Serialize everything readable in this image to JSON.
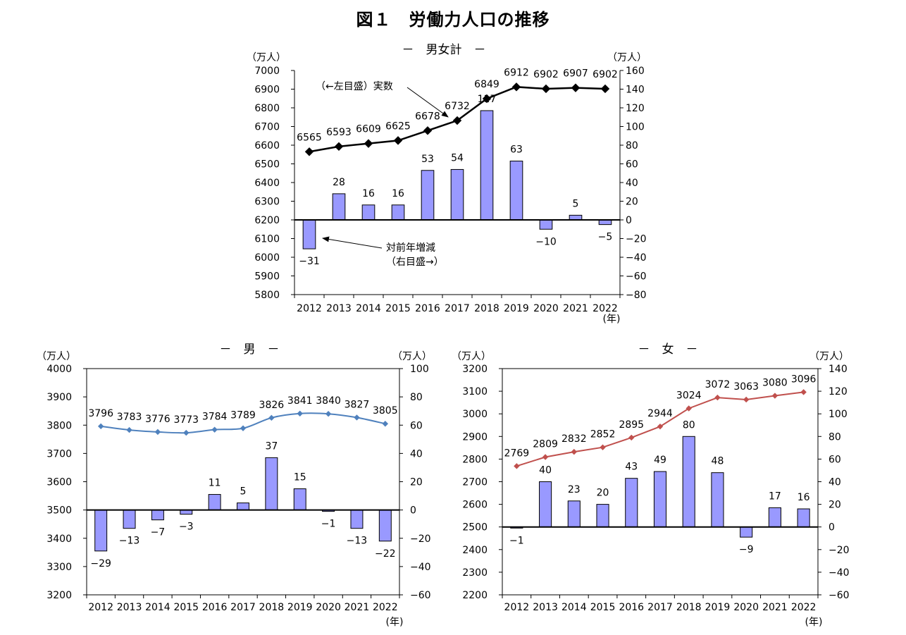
{
  "figure_title": "図１　労働力人口の推移",
  "chart_data": [
    {
      "id": "total",
      "type": "bar+line",
      "title": "－　男女計　－",
      "left_unit": "（万人）",
      "right_unit": "（万人）",
      "x_unit": "(年)",
      "categories": [
        "2012",
        "2013",
        "2014",
        "2015",
        "2016",
        "2017",
        "2018",
        "2019",
        "2020",
        "2021",
        "2022"
      ],
      "line": {
        "axis": "left",
        "values": [
          6565,
          6593,
          6609,
          6625,
          6678,
          6732,
          6849,
          6912,
          6902,
          6907,
          6902
        ],
        "color": "#000000",
        "marker": "diamond"
      },
      "bars": {
        "axis": "right",
        "values": [
          -31,
          28,
          16,
          16,
          53,
          54,
          117,
          63,
          -10,
          5,
          -5
        ],
        "color": "#9999ff"
      },
      "bar_labels": [
        "-31",
        "28",
        "16",
        "16",
        "53",
        "54",
        "117",
        "63",
        "-10",
        "5",
        "-5"
      ],
      "left_axis": {
        "min": 5800,
        "max": 7000,
        "step": 100
      },
      "right_axis": {
        "min": -80,
        "max": 160,
        "step": 20
      },
      "annotations": [
        {
          "text": "（←左目盛）実数"
        },
        {
          "text": "対前年増減"
        },
        {
          "text": "（右目盛→）"
        }
      ],
      "frame": false,
      "line_style": "straight"
    },
    {
      "id": "male",
      "type": "bar+line",
      "title": "－　男　－",
      "left_unit": "（万人）",
      "right_unit": "（万人）",
      "x_unit": "(年)",
      "categories": [
        "2012",
        "2013",
        "2014",
        "2015",
        "2016",
        "2017",
        "2018",
        "2019",
        "2020",
        "2021",
        "2022"
      ],
      "line": {
        "axis": "left",
        "values": [
          3796,
          3783,
          3776,
          3773,
          3784,
          3789,
          3826,
          3841,
          3840,
          3827,
          3805
        ],
        "color": "#4f81bd",
        "marker": "small-diamond"
      },
      "bars": {
        "axis": "right",
        "values": [
          -29,
          -13,
          -7,
          -3,
          11,
          5,
          37,
          15,
          -1,
          -13,
          -22
        ],
        "color": "#9999ff"
      },
      "bar_labels": [
        "-29",
        "-13",
        "-7",
        "-3",
        "11",
        "5",
        "37",
        "15",
        "-1",
        "-13",
        "-22"
      ],
      "left_axis": {
        "min": 3200,
        "max": 4000,
        "step": 100
      },
      "right_axis": {
        "min": -60,
        "max": 100,
        "step": 20
      },
      "frame": true,
      "line_style": "smooth"
    },
    {
      "id": "female",
      "type": "bar+line",
      "title": "－　女　－",
      "left_unit": "（万人）",
      "right_unit": "（万人）",
      "x_unit": "(年)",
      "categories": [
        "2012",
        "2013",
        "2014",
        "2015",
        "2016",
        "2017",
        "2018",
        "2019",
        "2020",
        "2021",
        "2022"
      ],
      "line": {
        "axis": "left",
        "values": [
          2769,
          2809,
          2832,
          2852,
          2895,
          2944,
          3024,
          3072,
          3063,
          3080,
          3096
        ],
        "color": "#c0504d",
        "marker": "small-diamond"
      },
      "bars": {
        "axis": "right",
        "values": [
          -1,
          40,
          23,
          20,
          43,
          49,
          80,
          48,
          -9,
          17,
          16
        ],
        "color": "#9999ff"
      },
      "bar_labels": [
        "-1",
        "40",
        "23",
        "20",
        "43",
        "49",
        "80",
        "48",
        "-9",
        "17",
        "16"
      ],
      "left_axis": {
        "min": 2200,
        "max": 3200,
        "step": 100
      },
      "right_axis": {
        "min": -60,
        "max": 140,
        "step": 20
      },
      "frame": true,
      "line_style": "straight"
    }
  ]
}
